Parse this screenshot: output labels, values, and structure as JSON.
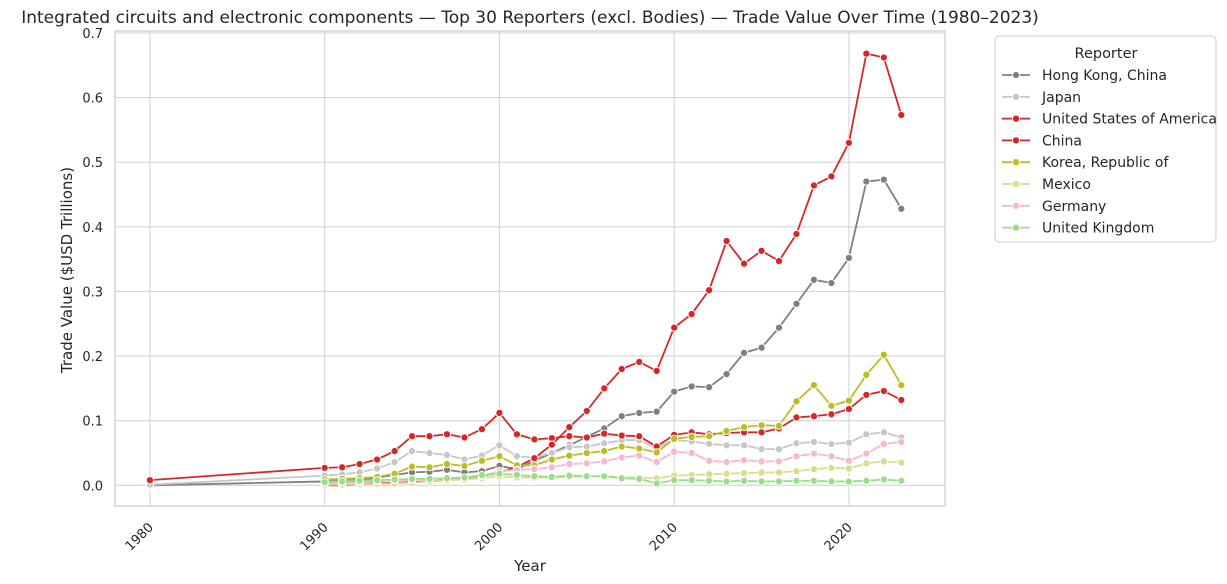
{
  "chart_data": {
    "type": "line",
    "title": "Integrated circuits and electronic components — Top 30 Reporters (excl. Bodies) — Trade Value Over Time (1980–2023)",
    "xlabel": "Year",
    "ylabel": "Trade Value ($USD Trillions)",
    "xlim": [
      1978,
      2025.5
    ],
    "ylim": [
      -0.032,
      0.703
    ],
    "xticks": [
      1980,
      1990,
      2000,
      2010,
      2020
    ],
    "xtick_labels": [
      "1980",
      "1990",
      "2000",
      "2010",
      "2020"
    ],
    "yticks": [
      0.0,
      0.1,
      0.2,
      0.3,
      0.4,
      0.5,
      0.6,
      0.7
    ],
    "ytick_labels": [
      "0.0",
      "0.1",
      "0.2",
      "0.3",
      "0.4",
      "0.5",
      "0.6",
      "0.7"
    ],
    "grid": true,
    "legend": {
      "title": "Reporter",
      "placement": "outside upper right"
    },
    "series": [
      {
        "name": "Hong Kong, China",
        "color": "#7f7f7f",
        "x": [
          1980,
          1990,
          1991,
          1992,
          1993,
          1994,
          1995,
          1996,
          1997,
          1998,
          1999,
          2000,
          2001,
          2002,
          2003,
          2004,
          2005,
          2006,
          2007,
          2008,
          2009,
          2010,
          2011,
          2012,
          2013,
          2014,
          2015,
          2016,
          2017,
          2018,
          2019,
          2020,
          2021,
          2022,
          2023
        ],
        "y": [
          0.0,
          0.006,
          0.007,
          0.008,
          0.012,
          0.016,
          0.02,
          0.021,
          0.024,
          0.02,
          0.022,
          0.03,
          0.025,
          0.038,
          0.05,
          0.062,
          0.075,
          0.088,
          0.107,
          0.112,
          0.114,
          0.145,
          0.153,
          0.152,
          0.172,
          0.205,
          0.213,
          0.244,
          0.281,
          0.318,
          0.313,
          0.352,
          0.47,
          0.473,
          0.428
        ]
      },
      {
        "name": "Japan",
        "color": "#c7c7c7",
        "x": [
          1980,
          1990,
          1991,
          1992,
          1993,
          1994,
          1995,
          1996,
          1997,
          1998,
          1999,
          2000,
          2001,
          2002,
          2003,
          2004,
          2005,
          2006,
          2007,
          2008,
          2009,
          2010,
          2011,
          2012,
          2013,
          2014,
          2015,
          2016,
          2017,
          2018,
          2019,
          2020,
          2021,
          2022,
          2023
        ],
        "y": [
          0.001,
          0.015,
          0.017,
          0.02,
          0.026,
          0.036,
          0.053,
          0.05,
          0.047,
          0.04,
          0.046,
          0.062,
          0.045,
          0.043,
          0.05,
          0.059,
          0.06,
          0.065,
          0.07,
          0.07,
          0.058,
          0.07,
          0.068,
          0.064,
          0.062,
          0.062,
          0.056,
          0.056,
          0.065,
          0.067,
          0.064,
          0.066,
          0.079,
          0.082,
          0.074
        ]
      },
      {
        "name": "United States of America",
        "color": "#d62728",
        "x": [
          1980,
          1990,
          1991,
          1992,
          1993,
          1994,
          1995,
          1996,
          1997,
          1998,
          1999,
          2000,
          2001,
          2002,
          2003,
          2004,
          2005,
          2006,
          2007,
          2008,
          2009,
          2010,
          2011,
          2012,
          2013,
          2014,
          2015,
          2016,
          2017,
          2018,
          2019,
          2020,
          2021,
          2022,
          2023
        ],
        "y": [
          0.008,
          0.027,
          0.028,
          0.033,
          0.04,
          0.053,
          0.076,
          0.076,
          0.079,
          0.074,
          0.087,
          0.112,
          0.079,
          0.071,
          0.073,
          0.076,
          0.074,
          0.08,
          0.077,
          0.076,
          0.06,
          0.078,
          0.082,
          0.079,
          0.081,
          0.082,
          0.082,
          0.088,
          0.105,
          0.107,
          0.11,
          0.118,
          0.14,
          0.146,
          0.132
        ]
      },
      {
        "name": "China",
        "color": "#d62728",
        "x": [
          1990,
          1991,
          1992,
          1993,
          1994,
          1995,
          1996,
          1997,
          1998,
          1999,
          2000,
          2001,
          2002,
          2003,
          2004,
          2005,
          2006,
          2007,
          2008,
          2009,
          2010,
          2011,
          2012,
          2013,
          2014,
          2015,
          2016,
          2017,
          2018,
          2019,
          2020,
          2021,
          2022,
          2023
        ],
        "y": [
          0.0,
          0.0,
          0.002,
          0.003,
          0.004,
          0.005,
          0.006,
          0.008,
          0.01,
          0.014,
          0.02,
          0.028,
          0.042,
          0.063,
          0.09,
          0.115,
          0.15,
          0.18,
          0.191,
          0.177,
          0.244,
          0.265,
          0.302,
          0.378,
          0.343,
          0.363,
          0.347,
          0.389,
          0.464,
          0.478,
          0.53,
          0.668,
          0.662,
          0.573
        ]
      },
      {
        "name": "Korea, Republic of",
        "color": "#bcbd22",
        "x": [
          1990,
          1991,
          1992,
          1993,
          1994,
          1995,
          1996,
          1997,
          1998,
          1999,
          2000,
          2001,
          2002,
          2003,
          2004,
          2005,
          2006,
          2007,
          2008,
          2009,
          2010,
          2011,
          2012,
          2013,
          2014,
          2015,
          2016,
          2017,
          2018,
          2019,
          2020,
          2021,
          2022,
          2023
        ],
        "y": [
          0.009,
          0.01,
          0.011,
          0.013,
          0.018,
          0.029,
          0.028,
          0.033,
          0.03,
          0.038,
          0.045,
          0.031,
          0.031,
          0.04,
          0.046,
          0.05,
          0.053,
          0.06,
          0.057,
          0.051,
          0.072,
          0.075,
          0.076,
          0.084,
          0.09,
          0.093,
          0.092,
          0.13,
          0.155,
          0.123,
          0.131,
          0.171,
          0.202,
          0.155
        ]
      },
      {
        "name": "Mexico",
        "color": "#dbdb8d",
        "x": [
          1990,
          1991,
          1992,
          1993,
          1994,
          1995,
          1996,
          1997,
          1998,
          1999,
          2000,
          2001,
          2002,
          2003,
          2004,
          2005,
          2006,
          2007,
          2008,
          2009,
          2010,
          2011,
          2012,
          2013,
          2014,
          2015,
          2016,
          2017,
          2018,
          2019,
          2020,
          2021,
          2022,
          2023
        ],
        "y": [
          0.001,
          0.001,
          0.002,
          0.002,
          0.003,
          0.004,
          0.006,
          0.008,
          0.009,
          0.011,
          0.014,
          0.012,
          0.012,
          0.012,
          0.013,
          0.014,
          0.014,
          0.012,
          0.012,
          0.011,
          0.015,
          0.016,
          0.017,
          0.018,
          0.019,
          0.02,
          0.02,
          0.022,
          0.025,
          0.027,
          0.026,
          0.034,
          0.037,
          0.035
        ]
      },
      {
        "name": "Germany",
        "color": "#f7b6d2",
        "x": [
          1990,
          1991,
          1992,
          1993,
          1994,
          1995,
          1996,
          1997,
          1998,
          1999,
          2000,
          2001,
          2002,
          2003,
          2004,
          2005,
          2006,
          2007,
          2008,
          2009,
          2010,
          2011,
          2012,
          2013,
          2014,
          2015,
          2016,
          2017,
          2018,
          2019,
          2020,
          2021,
          2022,
          2023
        ],
        "y": [
          0.003,
          0.004,
          0.005,
          0.006,
          0.008,
          0.008,
          0.01,
          0.011,
          0.012,
          0.014,
          0.022,
          0.024,
          0.025,
          0.028,
          0.033,
          0.034,
          0.037,
          0.043,
          0.046,
          0.036,
          0.052,
          0.05,
          0.038,
          0.036,
          0.039,
          0.037,
          0.037,
          0.045,
          0.049,
          0.045,
          0.038,
          0.049,
          0.064,
          0.067
        ]
      },
      {
        "name": "United Kingdom",
        "color": "#98df8a",
        "x": [
          1990,
          1991,
          1992,
          1993,
          1994,
          1995,
          1996,
          1997,
          1998,
          1999,
          2000,
          2001,
          2002,
          2003,
          2004,
          2005,
          2006,
          2007,
          2008,
          2009,
          2010,
          2011,
          2012,
          2013,
          2014,
          2015,
          2016,
          2017,
          2018,
          2019,
          2020,
          2021,
          2022,
          2023
        ],
        "y": [
          0.005,
          0.006,
          0.007,
          0.008,
          0.009,
          0.01,
          0.01,
          0.011,
          0.012,
          0.016,
          0.018,
          0.016,
          0.014,
          0.013,
          0.015,
          0.014,
          0.014,
          0.011,
          0.01,
          0.003,
          0.008,
          0.008,
          0.007,
          0.006,
          0.007,
          0.006,
          0.006,
          0.007,
          0.007,
          0.006,
          0.006,
          0.007,
          0.009,
          0.007
        ]
      }
    ]
  }
}
